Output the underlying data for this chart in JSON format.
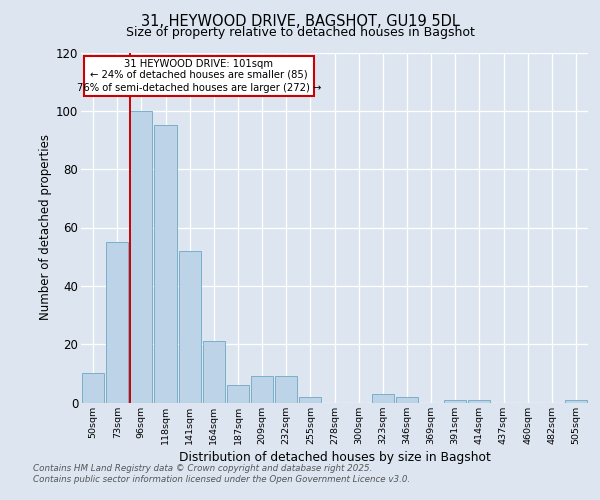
{
  "title_line1": "31, HEYWOOD DRIVE, BAGSHOT, GU19 5DL",
  "title_line2": "Size of property relative to detached houses in Bagshot",
  "xlabel": "Distribution of detached houses by size in Bagshot",
  "ylabel": "Number of detached properties",
  "categories": [
    "50sqm",
    "73sqm",
    "96sqm",
    "118sqm",
    "141sqm",
    "164sqm",
    "187sqm",
    "209sqm",
    "232sqm",
    "255sqm",
    "278sqm",
    "300sqm",
    "323sqm",
    "346sqm",
    "369sqm",
    "391sqm",
    "414sqm",
    "437sqm",
    "460sqm",
    "482sqm",
    "505sqm"
  ],
  "values": [
    10,
    55,
    100,
    95,
    52,
    21,
    6,
    9,
    9,
    2,
    0,
    0,
    3,
    2,
    0,
    1,
    1,
    0,
    0,
    0,
    1
  ],
  "bar_color": "#bdd4e8",
  "bar_edge_color": "#7aafc8",
  "bar_edge_width": 0.7,
  "red_line_index": 2,
  "red_line_color": "#cc0000",
  "property_label": "31 HEYWOOD DRIVE: 101sqm",
  "pct_smaller": "24% of detached houses are smaller (85)",
  "pct_larger": "76% of semi-detached houses are larger (272)",
  "annotation_box_color": "#cc0000",
  "ylim_max": 120,
  "background_color": "#dde6f0",
  "footer_line1": "Contains HM Land Registry data © Crown copyright and database right 2025.",
  "footer_line2": "Contains public sector information licensed under the Open Government Licence v3.0."
}
